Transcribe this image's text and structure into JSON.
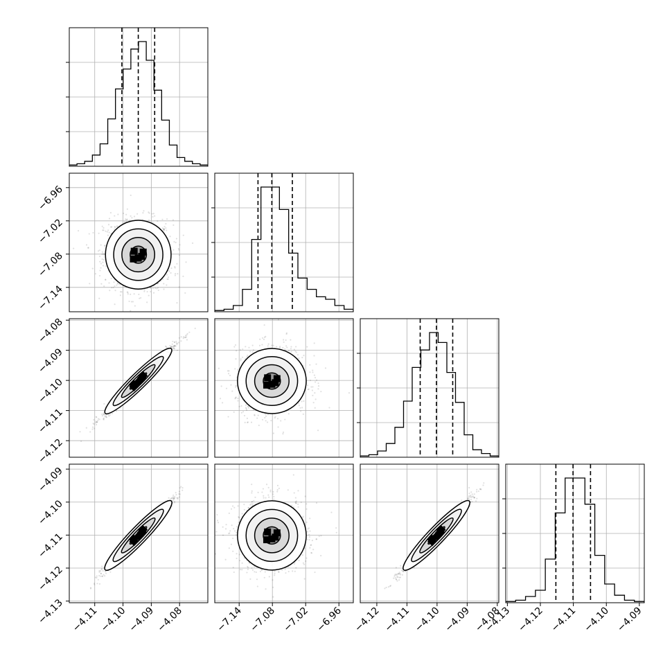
{
  "chart_data": {
    "type": "corner",
    "parameters": 4,
    "grid": true,
    "quantile_lines": "dashed",
    "contours": "2d-density",
    "diagonal": [
      {
        "xlim": [
          -4.119,
          -4.07
        ],
        "x_ticks": [
          -4.11,
          -4.1,
          -4.09,
          -4.08
        ],
        "quantiles": [
          -4.1004,
          -4.0946,
          -4.0888
        ],
        "hist": [
          1,
          2,
          4,
          9,
          18,
          38,
          62,
          78,
          94,
          100,
          85,
          61,
          37,
          17,
          7,
          4,
          2,
          1
        ]
      },
      {
        "xlim": [
          -7.184,
          -6.934
        ],
        "x_ticks": [
          -7.14,
          -7.08,
          -7.02,
          -6.96
        ],
        "quantiles": [
          -7.106,
          -7.081,
          -7.044
        ],
        "hist": [
          1,
          2,
          5,
          18,
          58,
          100,
          100,
          82,
          47,
          27,
          18,
          12,
          10,
          5,
          2
        ]
      },
      {
        "xlim": [
          -4.1255,
          -4.0795
        ],
        "x_ticks": [
          -4.12,
          -4.11,
          -4.1,
          -4.09,
          -4.08
        ],
        "quantiles": [
          -4.1056,
          -4.1002,
          -4.0948
        ],
        "hist": [
          1,
          2,
          5,
          11,
          24,
          45,
          72,
          86,
          100,
          92,
          68,
          44,
          18,
          6,
          3,
          1
        ]
      },
      {
        "xlim": [
          -4.1305,
          -4.0885
        ],
        "x_ticks": [
          -4.13,
          -4.12,
          -4.11,
          -4.1,
          -4.09
        ],
        "quantiles": [
          -4.1153,
          -4.1101,
          -4.1048
        ],
        "hist": [
          1,
          2,
          5,
          10,
          35,
          72,
          100,
          100,
          79,
          38,
          15,
          6,
          2,
          1
        ]
      }
    ],
    "y_axes": [
      null,
      {
        "ylim": [
          -7.184,
          -6.934
        ],
        "ticks": [
          -7.14,
          -7.08,
          -7.02,
          -6.96
        ]
      },
      {
        "ylim": [
          -4.1255,
          -4.0795
        ],
        "ticks": [
          -4.12,
          -4.11,
          -4.1,
          -4.09,
          -4.08
        ]
      },
      {
        "ylim": [
          -4.1305,
          -4.0885
        ],
        "ticks": [
          -4.13,
          -4.12,
          -4.11,
          -4.1,
          -4.09
        ]
      }
    ],
    "pairs": [
      {
        "row": 1,
        "col": 0,
        "rho": -0.05
      },
      {
        "row": 2,
        "col": 0,
        "rho": 0.985
      },
      {
        "row": 2,
        "col": 1,
        "rho": 0.05
      },
      {
        "row": 3,
        "col": 0,
        "rho": 0.985
      },
      {
        "row": 3,
        "col": 1,
        "rho": 0.02
      },
      {
        "row": 3,
        "col": 2,
        "rho": 0.985
      }
    ]
  }
}
